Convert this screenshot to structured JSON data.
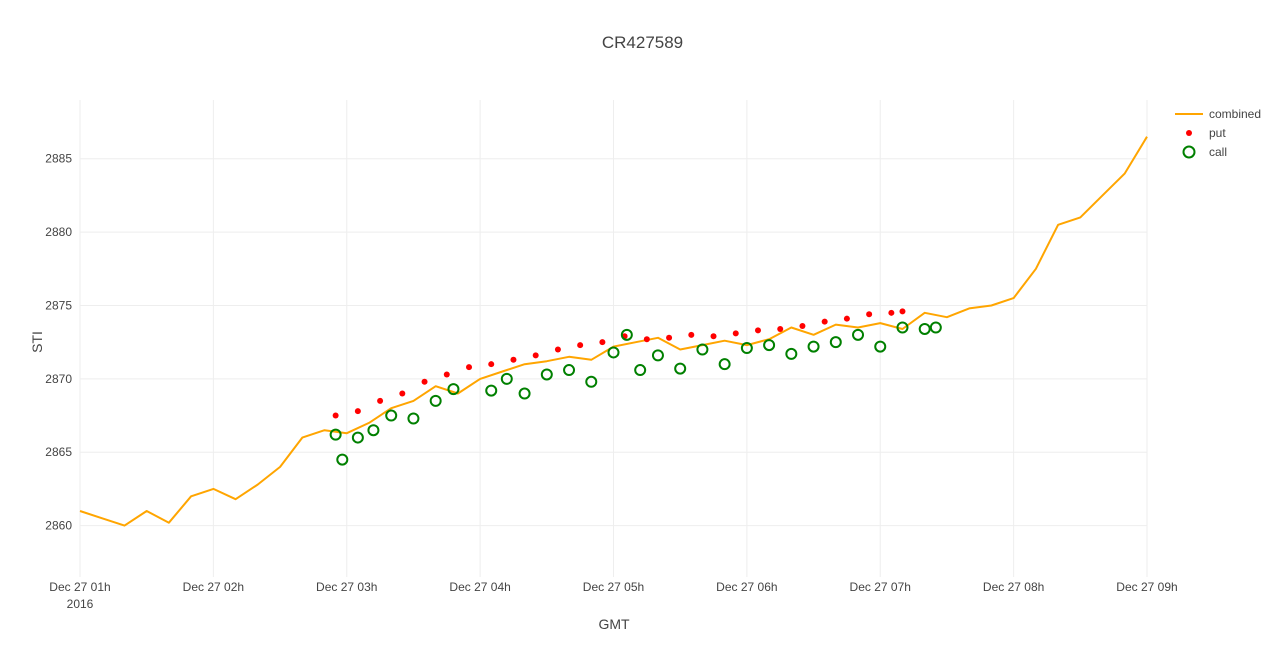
{
  "chart_data": {
    "type": "line",
    "title": "CR427589",
    "xlabel": "GMT",
    "ylabel": "STI",
    "x_range": [
      "2016-12-27T01:00",
      "2016-12-27T09:00"
    ],
    "ylim": [
      2856.5,
      2889
    ],
    "x_ticks": [
      {
        "t": "2016-12-27T01:00",
        "label": "Dec 27 01h",
        "sublabel": "2016"
      },
      {
        "t": "2016-12-27T02:00",
        "label": "Dec 27 02h"
      },
      {
        "t": "2016-12-27T03:00",
        "label": "Dec 27 03h"
      },
      {
        "t": "2016-12-27T04:00",
        "label": "Dec 27 04h"
      },
      {
        "t": "2016-12-27T05:00",
        "label": "Dec 27 05h"
      },
      {
        "t": "2016-12-27T06:00",
        "label": "Dec 27 06h"
      },
      {
        "t": "2016-12-27T07:00",
        "label": "Dec 27 07h"
      },
      {
        "t": "2016-12-27T08:00",
        "label": "Dec 27 08h"
      },
      {
        "t": "2016-12-27T09:00",
        "label": "Dec 27 09h"
      }
    ],
    "y_ticks": [
      2860,
      2865,
      2870,
      2875,
      2880,
      2885
    ],
    "grid": true,
    "legend_position": "top-right",
    "series": [
      {
        "name": "combined",
        "mode": "line",
        "color": "#ffa500",
        "x": [
          "2016-12-27T01:00",
          "2016-12-27T01:10",
          "2016-12-27T01:20",
          "2016-12-27T01:30",
          "2016-12-27T01:40",
          "2016-12-27T01:50",
          "2016-12-27T02:00",
          "2016-12-27T02:10",
          "2016-12-27T02:20",
          "2016-12-27T02:30",
          "2016-12-27T02:40",
          "2016-12-27T02:50",
          "2016-12-27T03:00",
          "2016-12-27T03:10",
          "2016-12-27T03:20",
          "2016-12-27T03:30",
          "2016-12-27T03:40",
          "2016-12-27T03:50",
          "2016-12-27T04:00",
          "2016-12-27T04:10",
          "2016-12-27T04:20",
          "2016-12-27T04:30",
          "2016-12-27T04:40",
          "2016-12-27T04:50",
          "2016-12-27T05:00",
          "2016-12-27T05:10",
          "2016-12-27T05:20",
          "2016-12-27T05:30",
          "2016-12-27T05:40",
          "2016-12-27T05:50",
          "2016-12-27T06:00",
          "2016-12-27T06:10",
          "2016-12-27T06:20",
          "2016-12-27T06:30",
          "2016-12-27T06:40",
          "2016-12-27T06:50",
          "2016-12-27T07:00",
          "2016-12-27T07:10",
          "2016-12-27T07:20",
          "2016-12-27T07:30",
          "2016-12-27T07:40",
          "2016-12-27T07:50",
          "2016-12-27T08:00",
          "2016-12-27T08:10",
          "2016-12-27T08:20",
          "2016-12-27T08:30",
          "2016-12-27T08:40",
          "2016-12-27T08:50",
          "2016-12-27T09:00"
        ],
        "y": [
          2861.0,
          2860.5,
          2860.0,
          2861.0,
          2860.2,
          2862.0,
          2862.5,
          2861.8,
          2862.8,
          2864.0,
          2866.0,
          2866.5,
          2866.3,
          2867.0,
          2868.0,
          2868.5,
          2869.5,
          2869.0,
          2870.0,
          2870.5,
          2871.0,
          2871.2,
          2871.5,
          2871.3,
          2872.2,
          2872.5,
          2872.8,
          2872.0,
          2872.3,
          2872.6,
          2872.3,
          2872.7,
          2873.5,
          2873.0,
          2873.7,
          2873.5,
          2873.8,
          2873.4,
          2874.5,
          2874.2,
          2874.8,
          2875.0,
          2875.5,
          2877.5,
          2880.5,
          2881.0,
          2882.5,
          2884.0,
          2886.5
        ]
      },
      {
        "name": "put",
        "mode": "markers",
        "color": "#ff0000",
        "x": [
          "2016-12-27T02:55",
          "2016-12-27T03:05",
          "2016-12-27T03:15",
          "2016-12-27T03:25",
          "2016-12-27T03:35",
          "2016-12-27T03:45",
          "2016-12-27T03:55",
          "2016-12-27T04:05",
          "2016-12-27T04:15",
          "2016-12-27T04:25",
          "2016-12-27T04:35",
          "2016-12-27T04:45",
          "2016-12-27T04:55",
          "2016-12-27T05:05",
          "2016-12-27T05:15",
          "2016-12-27T05:25",
          "2016-12-27T05:35",
          "2016-12-27T05:45",
          "2016-12-27T05:55",
          "2016-12-27T06:05",
          "2016-12-27T06:15",
          "2016-12-27T06:25",
          "2016-12-27T06:35",
          "2016-12-27T06:45",
          "2016-12-27T06:55",
          "2016-12-27T07:05",
          "2016-12-27T07:10"
        ],
        "y": [
          2867.5,
          2867.8,
          2868.5,
          2869.0,
          2869.8,
          2870.3,
          2870.8,
          2871.0,
          2871.3,
          2871.6,
          2872.0,
          2872.3,
          2872.5,
          2872.9,
          2872.7,
          2872.8,
          2873.0,
          2872.9,
          2873.1,
          2873.3,
          2873.4,
          2873.6,
          2873.9,
          2874.1,
          2874.4,
          2874.5,
          2874.6
        ]
      },
      {
        "name": "call",
        "mode": "markers",
        "color": "#008000",
        "x": [
          "2016-12-27T02:55",
          "2016-12-27T02:58",
          "2016-12-27T03:05",
          "2016-12-27T03:12",
          "2016-12-27T03:20",
          "2016-12-27T03:30",
          "2016-12-27T03:40",
          "2016-12-27T03:48",
          "2016-12-27T04:05",
          "2016-12-27T04:12",
          "2016-12-27T04:20",
          "2016-12-27T04:30",
          "2016-12-27T04:40",
          "2016-12-27T04:50",
          "2016-12-27T05:00",
          "2016-12-27T05:06",
          "2016-12-27T05:12",
          "2016-12-27T05:20",
          "2016-12-27T05:30",
          "2016-12-27T05:40",
          "2016-12-27T05:50",
          "2016-12-27T06:00",
          "2016-12-27T06:10",
          "2016-12-27T06:20",
          "2016-12-27T06:30",
          "2016-12-27T06:40",
          "2016-12-27T06:50",
          "2016-12-27T07:00",
          "2016-12-27T07:10",
          "2016-12-27T07:20",
          "2016-12-27T07:25"
        ],
        "y": [
          2866.2,
          2864.5,
          2866.0,
          2866.5,
          2867.5,
          2867.3,
          2868.5,
          2869.3,
          2869.2,
          2870.0,
          2869.0,
          2870.3,
          2870.6,
          2869.8,
          2871.8,
          2873.0,
          2870.6,
          2871.6,
          2870.7,
          2872.0,
          2871.0,
          2872.1,
          2872.3,
          2871.7,
          2872.2,
          2872.5,
          2873.0,
          2872.2,
          2873.5,
          2873.4,
          2873.5
        ]
      }
    ]
  }
}
